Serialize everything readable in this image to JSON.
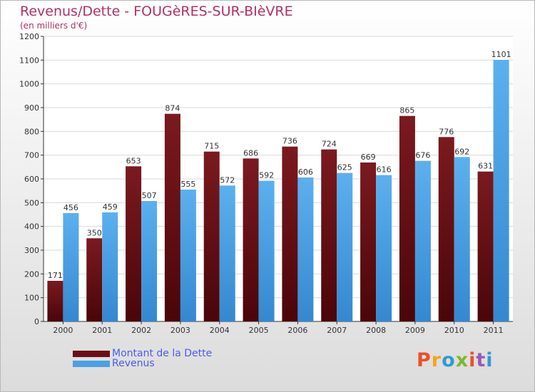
{
  "header": {
    "title": "Revenus/Dette - FOUGèRES-SUR-BIèVRE",
    "subtitle": "(en milliers d'€)"
  },
  "legend": {
    "items": [
      {
        "label": "Montant de la Dette",
        "color": "#6b0f15"
      },
      {
        "label": "Revenus",
        "color": "#4aa0e6"
      }
    ]
  },
  "logo": {
    "text": "Proxiti",
    "colors": [
      "#e8522a",
      "#f4a51c",
      "#2f9ad4",
      "#7cb82f",
      "#e8522a",
      "#9b59b6",
      "#2f9ad4"
    ]
  },
  "chart_data": {
    "type": "bar",
    "title": "Revenus/Dette - FOUGèRES-SUR-BIèVRE",
    "ylabel": "(en milliers d'€)",
    "categories": [
      "2000",
      "2001",
      "2002",
      "2003",
      "2004",
      "2005",
      "2006",
      "2007",
      "2008",
      "2009",
      "2010",
      "2011"
    ],
    "series": [
      {
        "name": "Montant de la Dette",
        "color": "#6b0f15",
        "values": [
          171,
          350,
          653,
          874,
          715,
          686,
          736,
          724,
          669,
          865,
          776,
          631
        ]
      },
      {
        "name": "Revenus",
        "color": "#4aa0e6",
        "values": [
          456,
          459,
          507,
          555,
          572,
          592,
          606,
          625,
          616,
          676,
          692,
          1101
        ]
      }
    ],
    "ylim": [
      0,
      1200
    ],
    "yticks": [
      0,
      100,
      200,
      300,
      400,
      500,
      600,
      700,
      800,
      900,
      1000,
      1100,
      1200
    ],
    "grid": true,
    "legend_position": "bottom-left"
  }
}
